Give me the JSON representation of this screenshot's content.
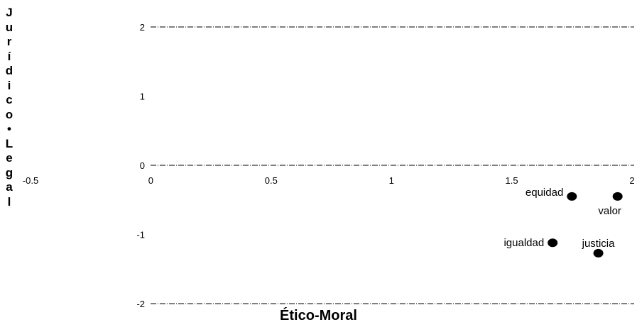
{
  "chart_data": {
    "type": "scatter",
    "title": "",
    "xlabel": "Ético-Moral",
    "ylabel": "Jurídico-Legal",
    "xlim": [
      -0.5,
      2
    ],
    "ylim": [
      -2,
      2
    ],
    "x_ticks": [
      "-0.5",
      "0",
      "0.5",
      "1",
      "1.5",
      "2"
    ],
    "y_ticks": [
      "2",
      "1",
      "0",
      "-1",
      "-2"
    ],
    "grid": "dashed horizontal lines at y = 2, 0, -2",
    "points": [
      {
        "label": "equidad",
        "x": 1.75,
        "y": -0.45
      },
      {
        "label": "valor",
        "x": 1.94,
        "y": -0.45
      },
      {
        "label": "igualdad",
        "x": 1.67,
        "y": -1.12
      },
      {
        "label": "justicia",
        "x": 1.86,
        "y": -1.27
      }
    ]
  }
}
